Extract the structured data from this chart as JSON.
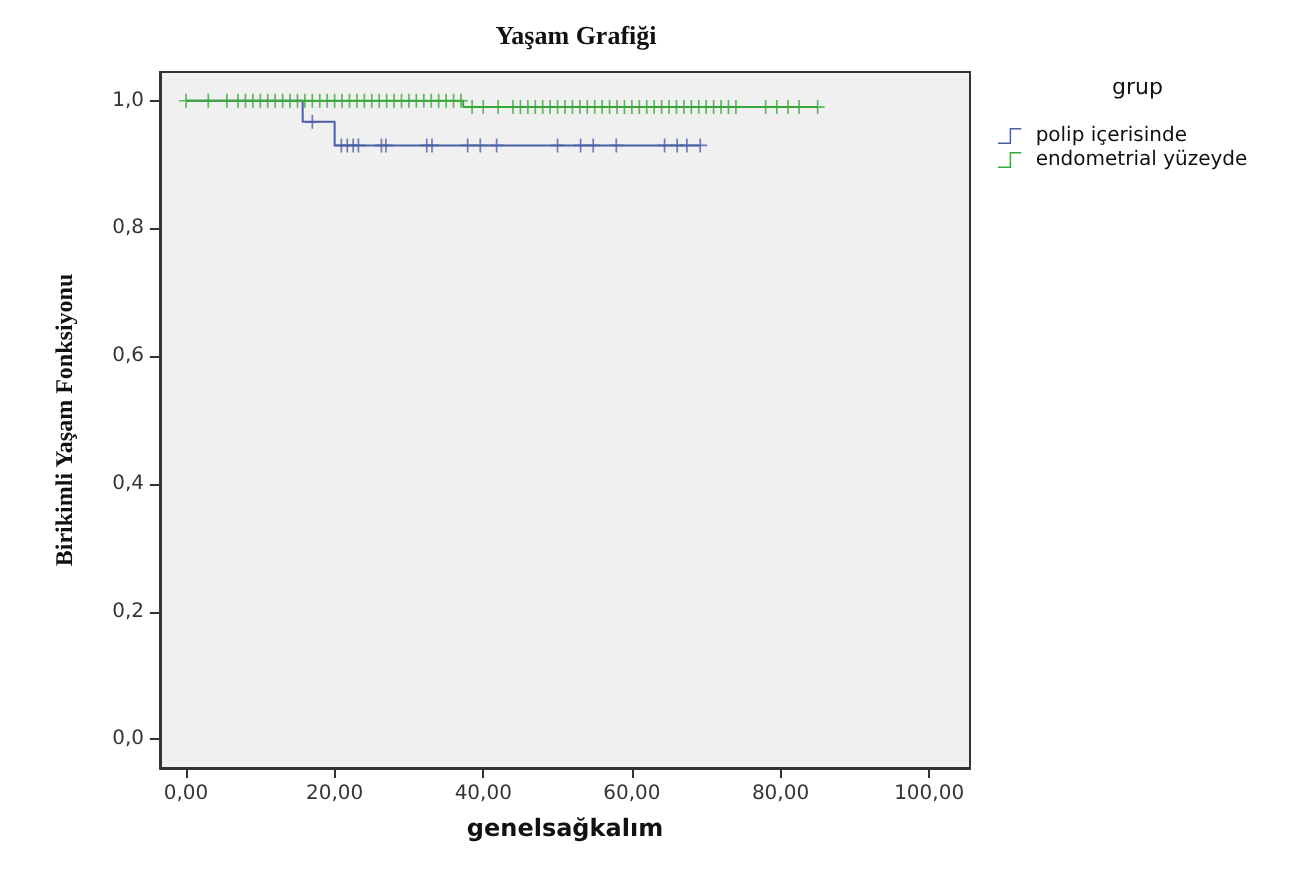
{
  "chart_data": {
    "type": "step",
    "title": "Yaşam Grafiği",
    "xlabel": "genelsağkalım",
    "ylabel": "Birikimli Yaşam Fonksiyonu",
    "legend_title": "grup",
    "legend": "right",
    "xlim": [
      -3.5,
      105.5
    ],
    "ylim": [
      -0.045,
      1.045
    ],
    "xticks": [
      {
        "value": 0,
        "label": "0,00"
      },
      {
        "value": 20,
        "label": "20,00"
      },
      {
        "value": 40,
        "label": "40,00"
      },
      {
        "value": 60,
        "label": "60,00"
      },
      {
        "value": 80,
        "label": "80,00"
      },
      {
        "value": 100,
        "label": "100,00"
      }
    ],
    "yticks": [
      {
        "value": 0,
        "label": "0,0"
      },
      {
        "value": 0.2,
        "label": "0,2"
      },
      {
        "value": 0.4,
        "label": "0,4"
      },
      {
        "value": 0.6,
        "label": "0,6"
      },
      {
        "value": 0.8,
        "label": "0,8"
      },
      {
        "value": 1,
        "label": "1,0"
      }
    ],
    "grid": false,
    "series": [
      {
        "type": "step",
        "name": "polip içerisinde",
        "color": "#4a5ea8",
        "x": [
          0,
          15.7,
          20,
          69.2
        ],
        "values": [
          1,
          0.967,
          0.93,
          0.93
        ]
      },
      {
        "type": "step",
        "name": "endometrial yüzeyde",
        "color": "#3aa83a",
        "x": [
          0,
          37.3,
          85
        ],
        "values": [
          1,
          0.99,
          0.99
        ]
      },
      {
        "type": "scatter",
        "marker": "cross",
        "color": "#4a5ea8",
        "x": [
          17,
          20.9,
          21.7,
          22.5,
          23.2,
          26.3,
          26.9,
          32.4,
          33.1,
          37.9,
          39.6,
          41.8,
          50,
          53.1,
          54.8,
          57.9,
          64.4,
          66.1,
          67.4,
          69.2
        ],
        "values": [
          0.967,
          0.93,
          0.93,
          0.93,
          0.93,
          0.93,
          0.93,
          0.93,
          0.93,
          0.93,
          0.93,
          0.93,
          0.93,
          0.93,
          0.93,
          0.93,
          0.93,
          0.93,
          0.93,
          0.93
        ]
      },
      {
        "type": "scatter",
        "marker": "cross",
        "color": "#3aa83a",
        "x": [
          0,
          3,
          5.5,
          7,
          8,
          9,
          10,
          11,
          12,
          13,
          14,
          15,
          16,
          17,
          18,
          19,
          20,
          21,
          22,
          23,
          24,
          25,
          26,
          27,
          28,
          29,
          30,
          31,
          32,
          33,
          34,
          35,
          36,
          37,
          38.5,
          40,
          42,
          44,
          45,
          46,
          47,
          48,
          49,
          50,
          51,
          52,
          53,
          54,
          55,
          56,
          57,
          58,
          59,
          60,
          61,
          62,
          63,
          64,
          65,
          66,
          67,
          68,
          69,
          70,
          71,
          72,
          73,
          74,
          78,
          79.5,
          81,
          82.5,
          85
        ],
        "values": [
          1,
          1,
          1,
          1,
          1,
          1,
          1,
          1,
          1,
          1,
          1,
          1,
          1,
          1,
          1,
          1,
          1,
          1,
          1,
          1,
          1,
          1,
          1,
          1,
          1,
          1,
          1,
          1,
          1,
          1,
          1,
          1,
          1,
          1,
          0.99,
          0.99,
          0.99,
          0.99,
          0.99,
          0.99,
          0.99,
          0.99,
          0.99,
          0.99,
          0.99,
          0.99,
          0.99,
          0.99,
          0.99,
          0.99,
          0.99,
          0.99,
          0.99,
          0.99,
          0.99,
          0.99,
          0.99,
          0.99,
          0.99,
          0.99,
          0.99,
          0.99,
          0.99,
          0.99,
          0.99,
          0.99,
          0.99,
          0.99,
          0.99,
          0.99,
          0.99,
          0.99,
          0.99
        ]
      }
    ]
  }
}
